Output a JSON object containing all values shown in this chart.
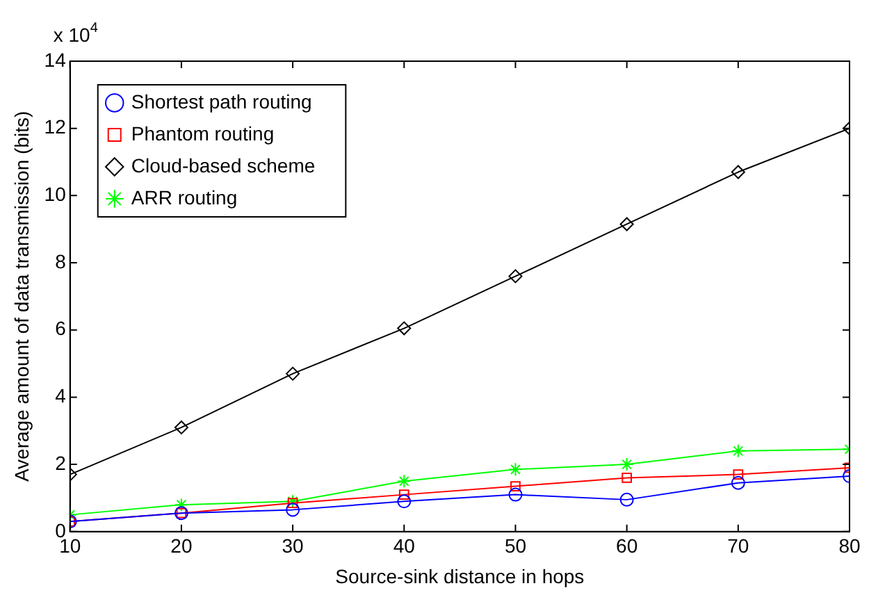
{
  "chart_data": {
    "type": "line",
    "xlabel": "Source-sink distance in hops",
    "ylabel": "Average amount of data transmission (bits)",
    "annotations": [
      "x 10$^{4}$"
    ],
    "x": [
      10,
      20,
      30,
      40,
      50,
      60,
      70,
      80
    ],
    "series": [
      {
        "name": "Shortest path routing",
        "color": "#0000ff",
        "marker": "circle",
        "values": [
          0.3,
          0.55,
          0.65,
          0.9,
          1.1,
          0.95,
          1.45,
          1.65
        ]
      },
      {
        "name": "Phantom routing",
        "color": "#ff0000",
        "marker": "square",
        "values": [
          0.3,
          0.55,
          0.85,
          1.1,
          1.35,
          1.6,
          1.7,
          1.9
        ]
      },
      {
        "name": "Cloud-based scheme",
        "color": "#000000",
        "marker": "diamond",
        "values": [
          1.7,
          3.1,
          4.7,
          6.05,
          7.6,
          9.15,
          10.7,
          12.0
        ]
      },
      {
        "name": "ARR routing",
        "color": "#00ff00",
        "marker": "cross",
        "values": [
          0.5,
          0.8,
          0.9,
          1.5,
          1.85,
          2.0,
          2.4,
          2.45
        ]
      }
    ],
    "xlim": [
      10,
      80
    ],
    "xticks": [
      10,
      20,
      30,
      40,
      50,
      60,
      70,
      80
    ],
    "ylim": [
      0,
      14
    ],
    "yticks": [
      0,
      2,
      4,
      6,
      8,
      10,
      12,
      14
    ],
    "grid": false,
    "legend": "top left",
    "line_style": "solid"
  }
}
